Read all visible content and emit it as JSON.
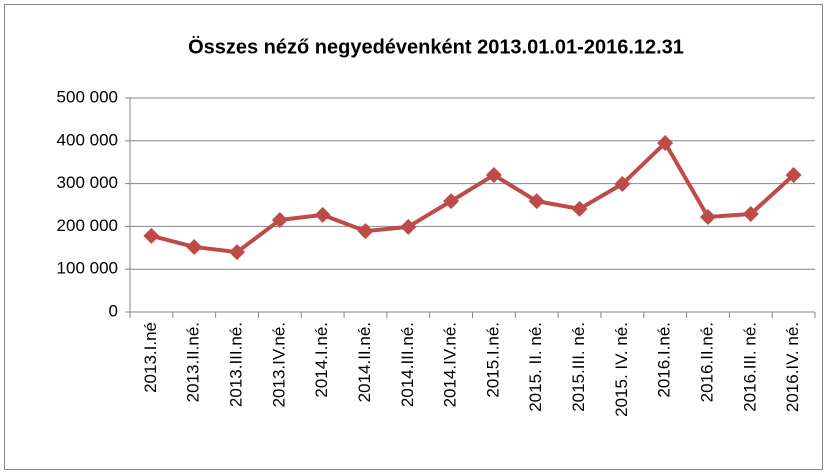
{
  "chart_data": {
    "type": "line",
    "title": "Összes néző negyedévenként 2013.01.01-2016.12.31",
    "categories": [
      "2013.I.né",
      "2013.II.né.",
      "2013.III.né.",
      "2013.IV.né.",
      "2014.I.né.",
      "2014.II.né.",
      "2014.III.né.",
      "2014.IV.né.",
      "2015.I.né.",
      "2015. II. né.",
      "2015.III. né.",
      "2015. IV. né.",
      "2016.I.né.",
      "2016.II.né.",
      "2016.III. né.",
      "2016.IV. né."
    ],
    "values": [
      178000,
      152000,
      140000,
      215000,
      227000,
      189000,
      199000,
      259000,
      320000,
      259000,
      241000,
      299000,
      395000,
      222000,
      229000,
      320000
    ],
    "color": "#be4b48",
    "ylim": [
      0,
      500000
    ],
    "yticks": [
      0,
      {
        "value": 100000,
        "label": "100 000"
      },
      {
        "value": 200000,
        "label": "200 000"
      },
      {
        "value": 300000,
        "label": "300 000"
      },
      {
        "value": 400000,
        "label": "400 000"
      },
      {
        "value": 500000,
        "label": "500 000"
      }
    ],
    "grid": true
  }
}
